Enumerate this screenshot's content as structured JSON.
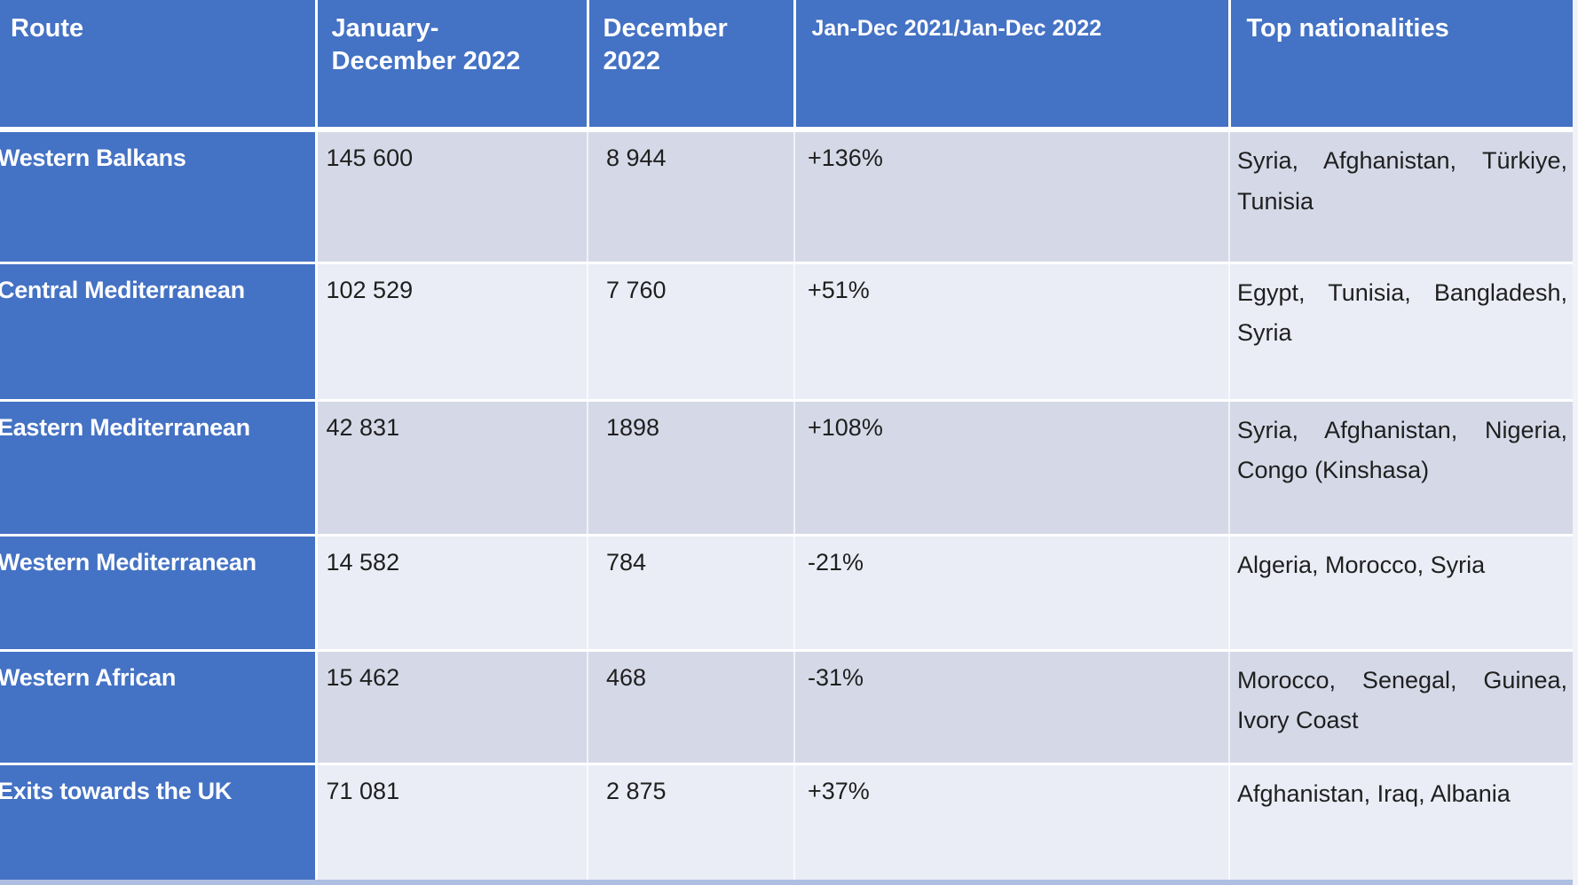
{
  "table": {
    "columns": [
      {
        "label": "Route"
      },
      {
        "label": "January-",
        "sublabel": "December 2022"
      },
      {
        "label": "December",
        "sublabel": "2022"
      },
      {
        "label": "Jan-Dec 2021/Jan-Dec 2022"
      },
      {
        "label": "Top nationalities"
      }
    ],
    "rows": [
      {
        "route": "Western Balkans",
        "jan_dec_2022": "145 600",
        "dec_2022": "8 944",
        "change": "+136%",
        "top_nationalities": "Syria, Afghanistan, Türkiye, Tunisia"
      },
      {
        "route": "Central Mediterranean",
        "jan_dec_2022": "102 529",
        "dec_2022": "7 760",
        "change": "+51%",
        "top_nationalities": "Egypt, Tunisia, Bangladesh, Syria"
      },
      {
        "route": "Eastern Mediterranean",
        "jan_dec_2022": "42 831",
        "dec_2022": "1898",
        "change": "+108%",
        "top_nationalities": "Syria, Afghanistan, Nigeria, Congo (Kinshasa)"
      },
      {
        "route": "Western Mediterranean",
        "jan_dec_2022": "14 582",
        "dec_2022": "784",
        "change": "-21%",
        "top_nationalities": "Algeria, Morocco, Syria"
      },
      {
        "route": "Western African",
        "jan_dec_2022": "15 462",
        "dec_2022": "468",
        "change": "-31%",
        "top_nationalities": "Morocco, Senegal, Guinea, Ivory Coast"
      },
      {
        "route": "Exits towards the UK",
        "jan_dec_2022": "71 081",
        "dec_2022": "2 875",
        "change": "+37%",
        "top_nationalities": "Afghanistan, Iraq, Albania"
      }
    ]
  },
  "colors": {
    "header_bg": "#4472C4",
    "row_band_dark": "#D5D9E7",
    "row_band_light": "#EBEDF6",
    "grid_line": "#FFFFFF",
    "header_text": "#FFFFFF",
    "cell_text": "#1F1F1F"
  },
  "chart_data": {
    "type": "table",
    "columns": [
      "Route",
      "January-December 2022",
      "December 2022",
      "Jan-Dec 2021/Jan-Dec 2022",
      "Top nationalities"
    ],
    "rows": [
      [
        "Western Balkans",
        "145 600",
        "8 944",
        "+136%",
        "Syria, Afghanistan, Türkiye, Tunisia"
      ],
      [
        "Central Mediterranean",
        "102 529",
        "7 760",
        "+51%",
        "Egypt, Tunisia, Bangladesh, Syria"
      ],
      [
        "Eastern Mediterranean",
        "42 831",
        "1898",
        "+108%",
        "Syria, Afghanistan, Nigeria, Congo (Kinshasa)"
      ],
      [
        "Western Mediterranean",
        "14 582",
        "784",
        "-21%",
        "Algeria, Morocco, Syria"
      ],
      [
        "Western African",
        "15 462",
        "468",
        "-31%",
        "Morocco, Senegal, Guinea, Ivory Coast"
      ],
      [
        "Exits towards the UK",
        "71 081",
        "2 875",
        "+37%",
        "Afghanistan, Iraq, Albania"
      ]
    ]
  }
}
